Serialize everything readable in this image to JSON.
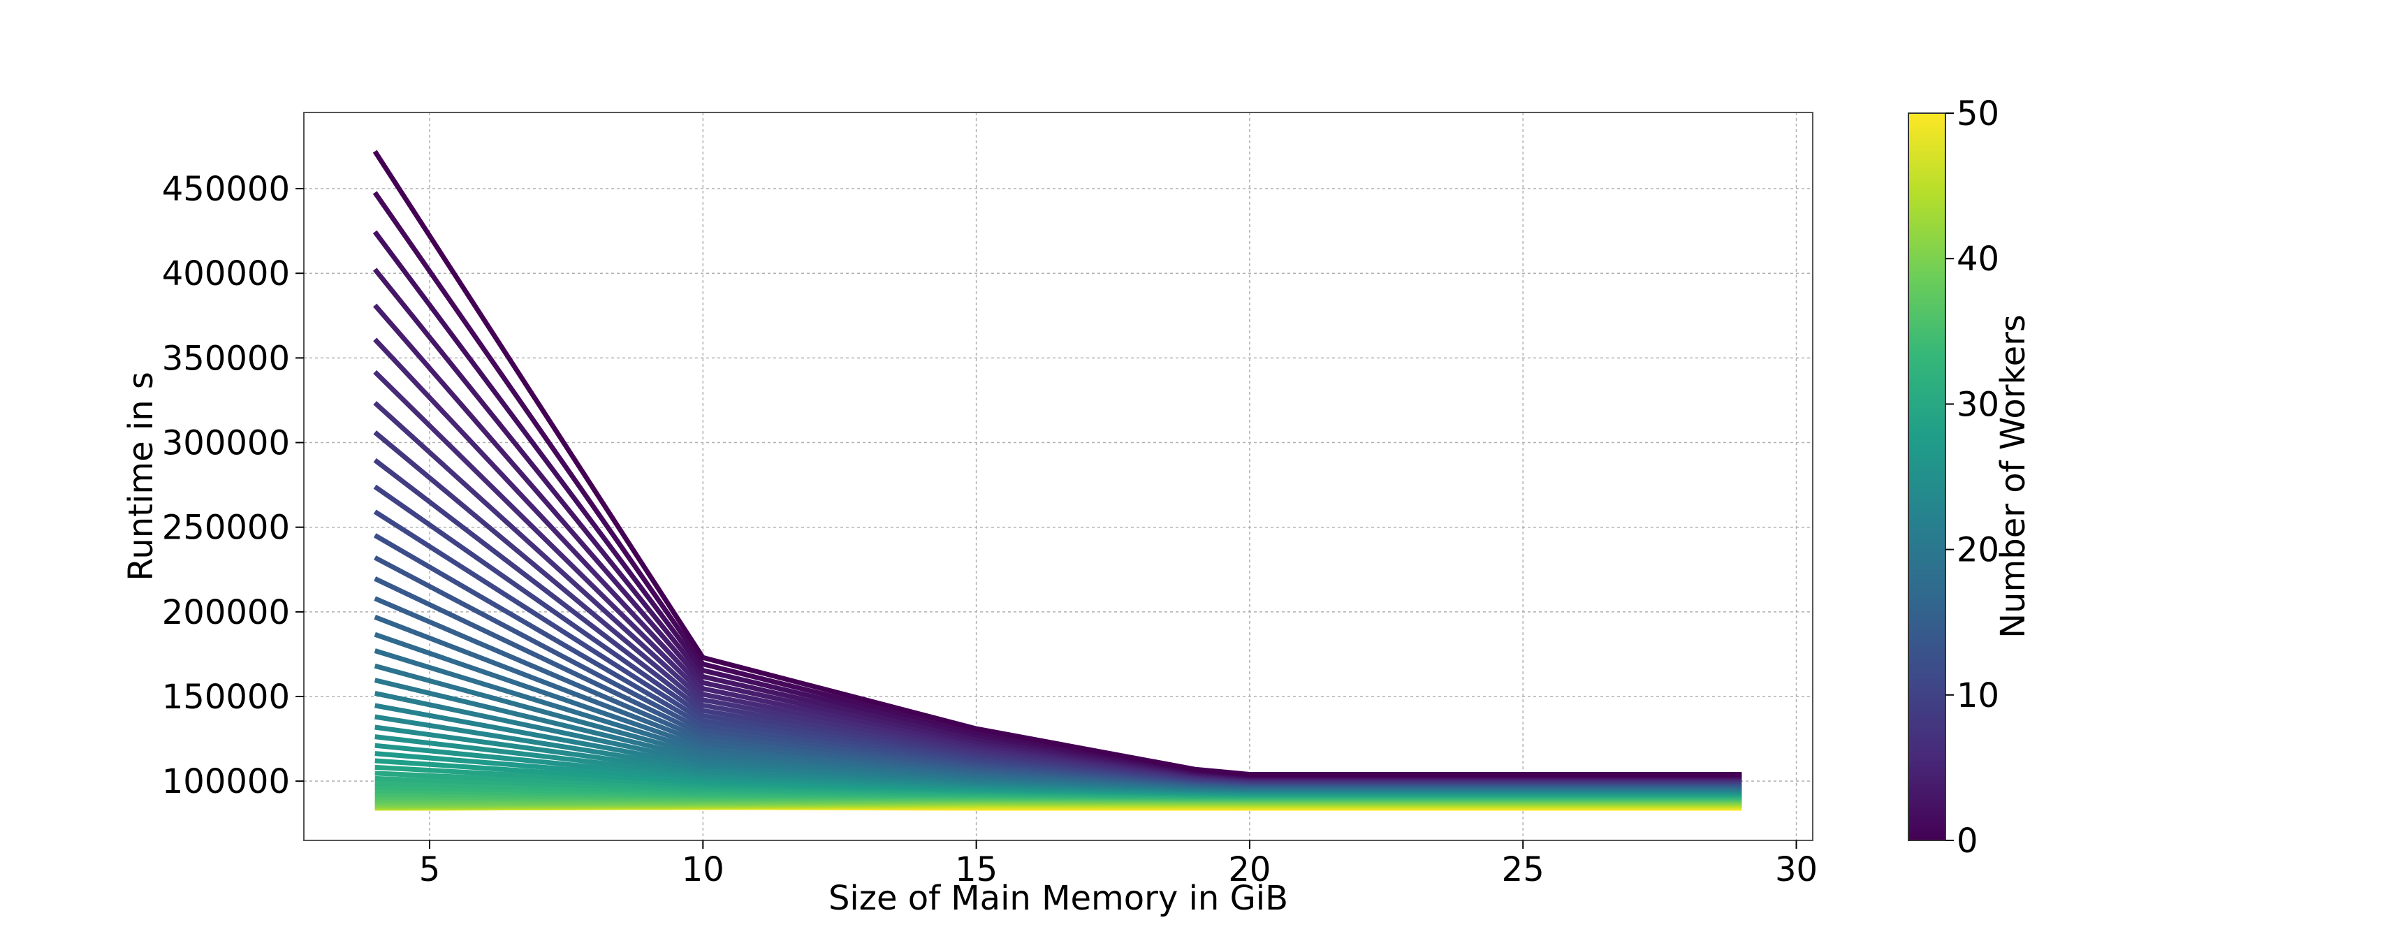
{
  "chart_data": {
    "type": "line",
    "title": "",
    "xlabel": "Size of Main Memory in GiB",
    "ylabel": "Runtime in s",
    "xlim": [
      2.7,
      30.3
    ],
    "ylim": [
      65000,
      495000
    ],
    "xticks": [
      5,
      10,
      15,
      20,
      25,
      30
    ],
    "yticks": [
      100000,
      150000,
      200000,
      250000,
      300000,
      350000,
      400000,
      450000
    ],
    "grid": true,
    "x": [
      4,
      10,
      15,
      19,
      20,
      29
    ],
    "series_generation": {
      "count": 51,
      "color_param": "number of workers (0 to 50)",
      "start_at_x4_max": 472000,
      "start_at_x4_min": 84000,
      "value_at_x10_max": 173000,
      "value_at_x10_min": 84500,
      "plateau_max": 104000,
      "plateau_min": 84000,
      "knee_at_x15_max": 131000,
      "knee_at_x19_max": 107000
    },
    "colorbar": {
      "label": "Number of Workers",
      "min": 0,
      "max": 50,
      "ticks": [
        0,
        10,
        20,
        30,
        40,
        50
      ],
      "colormap": "viridis",
      "colors": [
        "#440154",
        "#482878",
        "#3e4989",
        "#31688e",
        "#26828e",
        "#1f9e89",
        "#35b779",
        "#6ece58",
        "#b5de2b",
        "#fde725"
      ]
    }
  }
}
